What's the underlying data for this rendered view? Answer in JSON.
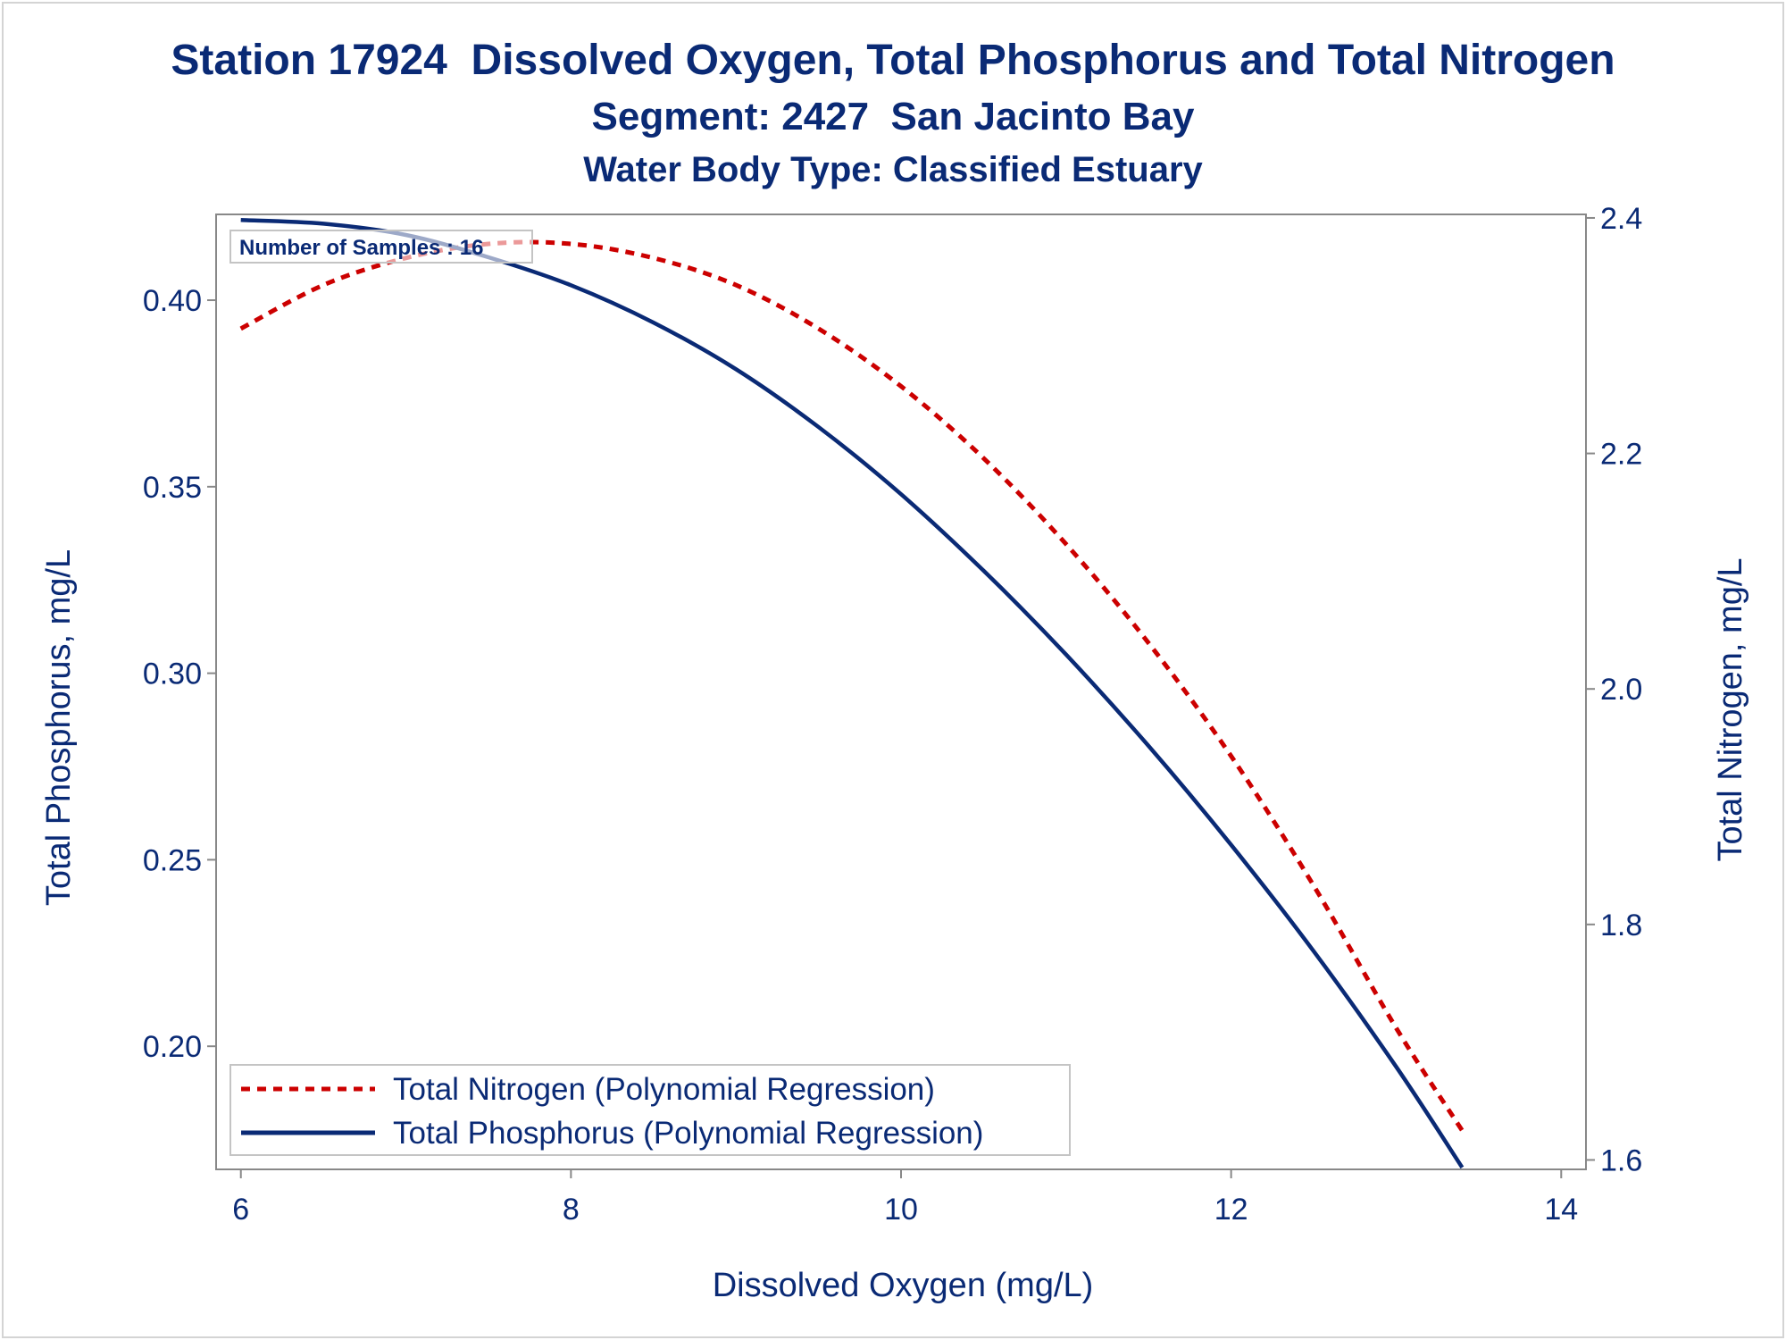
{
  "titles": {
    "line1": "Station 17924  Dissolved Oxygen, Total Phosphorus and Total Nitrogen",
    "line2": "Segment: 2427  San Jacinto Bay",
    "line3": "Water Body Type: Classified Estuary"
  },
  "inset_label": "Number of Samples : 16",
  "colors": {
    "text": "#0a2a75",
    "nitrogen": "#cc0000",
    "phosphorus": "#0a2a75",
    "axis": "#888888"
  },
  "chart_data": {
    "type": "line",
    "xlabel": "Dissolved Oxygen (mg/L)",
    "ylabel_left": "Total Phosphorus, mg/L",
    "ylabel_right": "Total Nitrogen, mg/L",
    "xlim": [
      5.85,
      14.15
    ],
    "ylim_left": [
      0.167,
      0.423
    ],
    "ylim_right": [
      1.592,
      2.403
    ],
    "x_ticks": [
      6,
      8,
      10,
      12,
      14
    ],
    "y_left_ticks": [
      "0.20",
      "0.25",
      "0.30",
      "0.35",
      "0.40"
    ],
    "y_right_ticks": [
      "1.6",
      "1.8",
      "2.0",
      "2.2",
      "2.4"
    ],
    "legend_position": "bottom-left",
    "series": [
      {
        "name": "Total Nitrogen (Polynomial Regression)",
        "axis": "right",
        "style": "dashed",
        "x": [
          6.0,
          6.5,
          7.0,
          7.5,
          8.0,
          8.5,
          9.0,
          9.5,
          10.0,
          10.5,
          11.0,
          11.5,
          12.0,
          12.5,
          13.0,
          13.4
        ],
        "y": [
          2.306,
          2.343,
          2.366,
          2.378,
          2.378,
          2.366,
          2.343,
          2.306,
          2.257,
          2.196,
          2.123,
          2.039,
          1.943,
          1.833,
          1.712,
          1.625
        ]
      },
      {
        "name": "Total Phosphorus (Polynomial Regression)",
        "axis": "left",
        "style": "solid",
        "x": [
          6.0,
          6.5,
          7.0,
          7.5,
          8.0,
          8.5,
          9.0,
          9.5,
          10.0,
          10.5,
          11.0,
          11.5,
          12.0,
          12.5,
          13.0,
          13.4
        ],
        "y": [
          0.4215,
          0.4205,
          0.4175,
          0.4115,
          0.404,
          0.394,
          0.3815,
          0.366,
          0.348,
          0.3275,
          0.305,
          0.2805,
          0.254,
          0.2255,
          0.1945,
          0.1675
        ]
      }
    ]
  }
}
